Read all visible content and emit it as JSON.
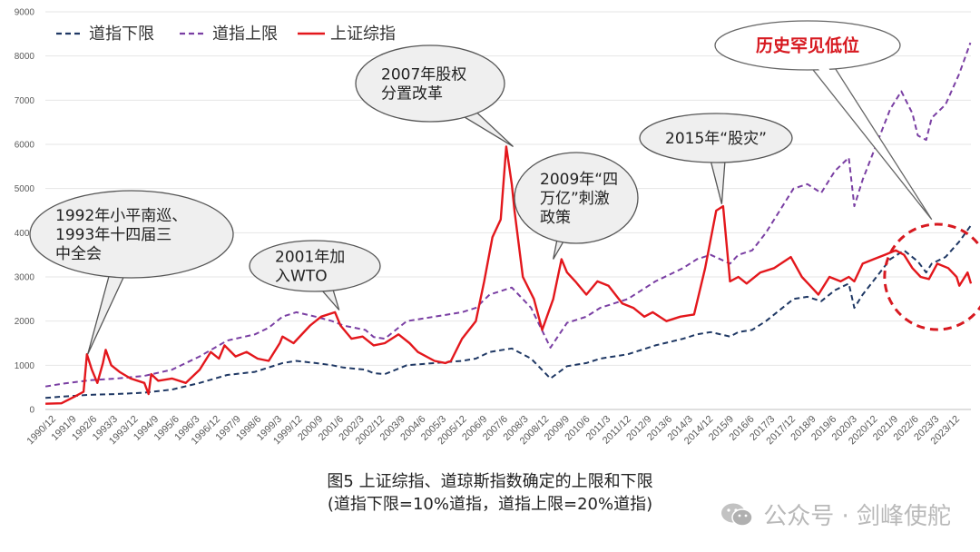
{
  "chart_data": {
    "type": "line",
    "title": "图5 上证综指、道琼斯指数确定的上限和下限",
    "subtitle": "(道指下限=10%道指，道指上限=20%道指)",
    "ylim": [
      0,
      9000
    ],
    "yticks": [
      "0",
      "1000",
      "2000",
      "3000",
      "4000",
      "5000",
      "6000",
      "7000",
      "8000",
      "9000"
    ],
    "x_start": 1990.917,
    "x_end": 2024.42,
    "xtick_labels": [
      "1990/12",
      "1991/9",
      "1992/6",
      "1993/3",
      "1993/12",
      "1994/9",
      "1995/6",
      "1996/3",
      "1996/12",
      "1997/9",
      "1998/6",
      "1999/3",
      "1999/12",
      "2000/9",
      "2001/6",
      "2002/3",
      "2002/12",
      "2003/9",
      "2004/6",
      "2005/3",
      "2005/12",
      "2006/9",
      "2007/6",
      "2008/3",
      "2008/12",
      "2009/9",
      "2010/6",
      "2011/3",
      "2011/12",
      "2012/9",
      "2013/6",
      "2014/3",
      "2014/12",
      "2015/9",
      "2016/6",
      "2017/3",
      "2017/12",
      "2018/9",
      "2019/6",
      "2020/3",
      "2020/12",
      "2021/9",
      "2022/6",
      "2023/3",
      "2023/12"
    ],
    "legend": [
      "道指下限",
      "道指上限",
      "上证综指"
    ],
    "series": [
      {
        "name": "道指下限",
        "color": "#1f3864",
        "dash": "6,4",
        "x": [
          1990.92,
          1991.5,
          1992.5,
          1993.5,
          1994.5,
          1995.5,
          1996.5,
          1997.5,
          1998.5,
          1999.5,
          2000.0,
          2000.7,
          2001.3,
          2001.7,
          2002.5,
          2002.8,
          2003.2,
          2004.0,
          2005.0,
          2006.0,
          2006.5,
          2007.0,
          2007.8,
          2008.5,
          2009.2,
          2009.8,
          2010.5,
          2011.0,
          2011.5,
          2012.0,
          2013.0,
          2014.0,
          2014.5,
          2015.0,
          2015.7,
          2016.0,
          2016.5,
          2017.0,
          2018.0,
          2018.5,
          2019.0,
          2019.5,
          2020.0,
          2020.2,
          2020.5,
          2021.0,
          2021.5,
          2022.0,
          2022.5,
          2022.8,
          2023.0,
          2023.5,
          2024.0,
          2024.4
        ],
        "values": [
          260,
          290,
          330,
          350,
          380,
          450,
          600,
          780,
          850,
          1050,
          1100,
          1050,
          1000,
          950,
          900,
          820,
          800,
          1000,
          1050,
          1100,
          1150,
          1300,
          1380,
          1150,
          700,
          980,
          1050,
          1150,
          1200,
          1250,
          1450,
          1600,
          1700,
          1750,
          1650,
          1750,
          1800,
          2000,
          2500,
          2550,
          2450,
          2700,
          2850,
          2300,
          2600,
          3000,
          3400,
          3600,
          3350,
          3100,
          3300,
          3450,
          3800,
          4150
        ]
      },
      {
        "name": "道指上限",
        "color": "#7a3fa3",
        "dash": "6,4",
        "x": [
          1990.92,
          1991.5,
          1992.5,
          1993.5,
          1994.5,
          1995.5,
          1996.5,
          1997.5,
          1998.5,
          1999.0,
          1999.5,
          2000.0,
          2000.7,
          2001.3,
          2001.7,
          2002.5,
          2002.8,
          2003.2,
          2004.0,
          2005.0,
          2006.0,
          2006.5,
          2007.0,
          2007.8,
          2008.5,
          2009.2,
          2009.8,
          2010.5,
          2011.0,
          2011.5,
          2012.0,
          2013.0,
          2014.0,
          2014.5,
          2015.0,
          2015.7,
          2016.0,
          2016.5,
          2017.0,
          2018.0,
          2018.5,
          2019.0,
          2019.5,
          2020.0,
          2020.2,
          2020.5,
          2021.0,
          2021.5,
          2021.9,
          2022.3,
          2022.5,
          2022.8,
          2023.0,
          2023.5,
          2024.0,
          2024.4
        ],
        "values": [
          520,
          580,
          660,
          700,
          760,
          900,
          1200,
          1560,
          1700,
          1850,
          2100,
          2200,
          2100,
          2000,
          1900,
          1800,
          1640,
          1600,
          2000,
          2100,
          2200,
          2300,
          2600,
          2760,
          2300,
          1400,
          1960,
          2100,
          2300,
          2400,
          2500,
          2900,
          3200,
          3400,
          3500,
          3300,
          3500,
          3600,
          4000,
          5000,
          5100,
          4900,
          5400,
          5700,
          4600,
          5200,
          6000,
          6800,
          7200,
          6700,
          6200,
          6100,
          6600,
          6900,
          7600,
          8300
        ]
      },
      {
        "name": "上证综指",
        "color": "#e3171c",
        "dash": "",
        "x": [
          1990.92,
          1991.5,
          1992.0,
          1992.3,
          1992.42,
          1992.6,
          1992.8,
          1993.0,
          1993.1,
          1993.3,
          1993.6,
          1994.0,
          1994.5,
          1994.65,
          1994.75,
          1995.0,
          1995.5,
          1996.0,
          1996.5,
          1996.9,
          1997.2,
          1997.4,
          1997.8,
          1998.2,
          1998.6,
          1999.0,
          1999.4,
          1999.5,
          1999.9,
          2000.5,
          2000.9,
          2001.4,
          2001.6,
          2002.0,
          2002.4,
          2002.8,
          2003.2,
          2003.7,
          2004.1,
          2004.4,
          2005.0,
          2005.4,
          2005.6,
          2006.0,
          2006.5,
          2006.8,
          2007.1,
          2007.4,
          2007.6,
          2007.8,
          2007.9,
          2008.2,
          2008.6,
          2008.9,
          2009.3,
          2009.6,
          2009.8,
          2010.1,
          2010.5,
          2010.9,
          2011.3,
          2011.8,
          2012.2,
          2012.6,
          2012.9,
          2013.4,
          2013.9,
          2014.4,
          2014.8,
          2015.2,
          2015.45,
          2015.7,
          2016.0,
          2016.3,
          2016.8,
          2017.3,
          2017.9,
          2018.3,
          2018.6,
          2018.9,
          2019.3,
          2019.7,
          2020.0,
          2020.2,
          2020.5,
          2020.9,
          2021.3,
          2021.7,
          2022.0,
          2022.3,
          2022.6,
          2022.9,
          2023.2,
          2023.6,
          2023.9,
          2024.0,
          2024.3,
          2024.42
        ],
        "values": [
          130,
          140,
          300,
          400,
          1250,
          900,
          600,
          1050,
          1350,
          1000,
          850,
          700,
          600,
          350,
          800,
          650,
          700,
          600,
          900,
          1300,
          1150,
          1450,
          1200,
          1300,
          1150,
          1100,
          1500,
          1650,
          1500,
          1900,
          2100,
          2200,
          1900,
          1600,
          1650,
          1450,
          1500,
          1700,
          1500,
          1300,
          1100,
          1050,
          1100,
          1600,
          2000,
          2900,
          3900,
          4300,
          5950,
          5100,
          4500,
          3000,
          2500,
          1800,
          2500,
          3400,
          3100,
          2900,
          2600,
          2900,
          2800,
          2400,
          2300,
          2100,
          2200,
          2000,
          2100,
          2150,
          3200,
          4500,
          4600,
          2900,
          3000,
          2850,
          3100,
          3200,
          3450,
          3000,
          2800,
          2600,
          3000,
          2900,
          3000,
          2900,
          3300,
          3400,
          3500,
          3600,
          3500,
          3200,
          3000,
          2950,
          3300,
          3200,
          3000,
          2800,
          3100,
          2850
        ]
      }
    ],
    "annotations": [
      {
        "label": "1992年小平南巡、1993年十四届三中全会",
        "lines": [
          "1992年小平南巡、",
          "1993年十四届三",
          "中全会"
        ],
        "point_x": 1992.45,
        "point_y": 1250
      },
      {
        "label": "2001年加入WTO",
        "lines": [
          "2001年加",
          "入WTO"
        ],
        "point_x": 2001.55,
        "point_y": 2250
      },
      {
        "label": "2007年股权分置改革",
        "lines": [
          "2007年股权",
          "分置改革"
        ],
        "point_x": 2007.85,
        "point_y": 5950
      },
      {
        "label": "2009年“四万亿”刺激政策",
        "lines": [
          "2009年“四",
          "万亿”刺激",
          "政策"
        ],
        "point_x": 2009.3,
        "point_y": 3400
      },
      {
        "label": "2015年“股灾”",
        "lines": [
          "2015年“股灾”"
        ],
        "point_x": 2015.4,
        "point_y": 4650
      },
      {
        "label": "历史罕见低位",
        "lines": [
          "历史罕见低位"
        ],
        "point_x": 2023.0,
        "point_y": 4300,
        "highlight": true
      }
    ]
  },
  "watermark": {
    "text": "公众号 · 剑峰使舵",
    "icon": "wechat-icon"
  }
}
